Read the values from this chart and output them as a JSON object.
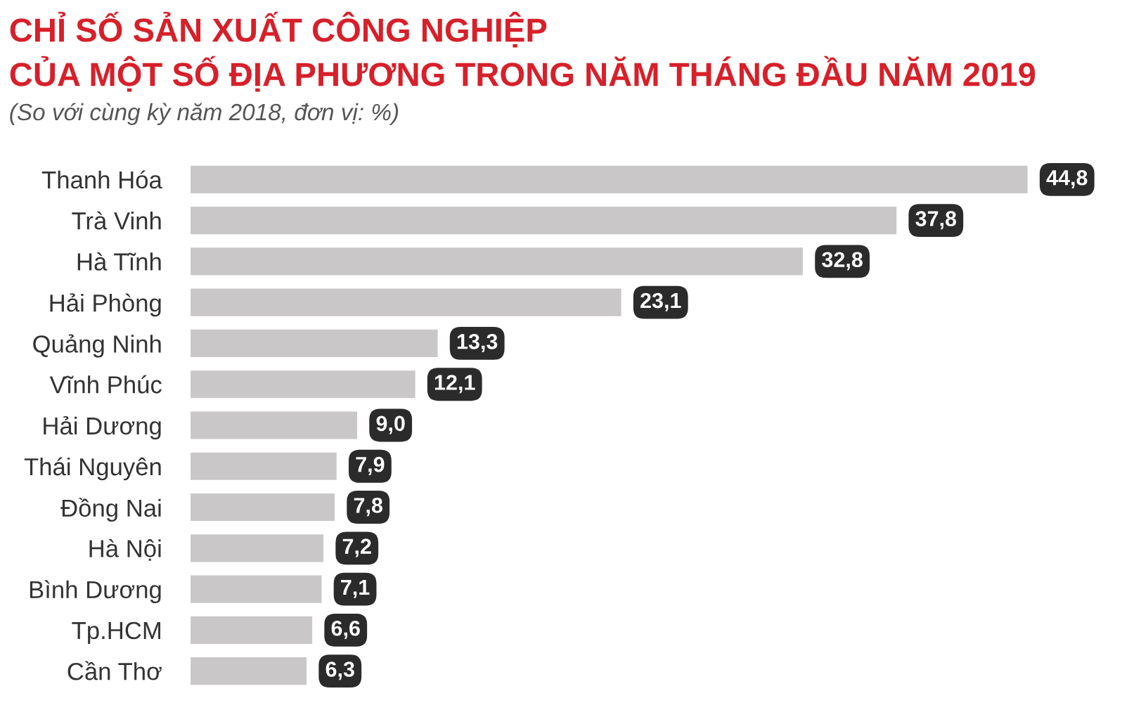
{
  "chart_data": {
    "type": "bar",
    "orientation": "horizontal",
    "title": "CHỈ SỐ SẢN XUẤT CÔNG NGHIỆP\nCỦA MỘT SỐ ĐỊA PHƯƠNG TRONG NĂM THÁNG ĐẦU NĂM 2019",
    "subtitle": "(So với cùng kỳ năm 2018, đơn vị: %)",
    "categories": [
      "Thanh Hóa",
      "Trà Vinh",
      "Hà Tĩnh",
      "Hải Phòng",
      "Quảng Ninh",
      "Vĩnh Phúc",
      "Hải Dương",
      "Thái Nguyên",
      "Đồng Nai",
      "Hà Nội",
      "Bình Dương",
      "Tp.HCM",
      "Cần Thơ"
    ],
    "values": [
      44.8,
      37.8,
      32.8,
      23.1,
      13.3,
      12.1,
      9.0,
      7.9,
      7.8,
      7.2,
      7.1,
      6.6,
      6.3
    ],
    "value_labels": [
      "44,8",
      "37,8",
      "32,8",
      "23,1",
      "13,3",
      "12,1",
      "9,0",
      "7,9",
      "7,8",
      "7,2",
      "7,1",
      "6,6",
      "6,3"
    ],
    "color": "#c9c7c8"
  }
}
